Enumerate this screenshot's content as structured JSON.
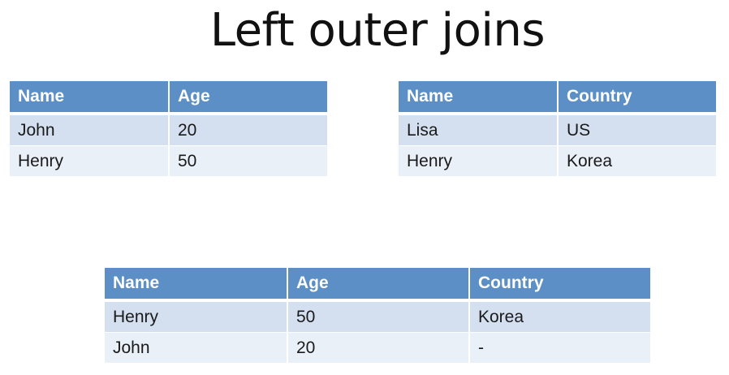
{
  "title": "Left outer joins",
  "people_table": {
    "headers": [
      "Name",
      "Age"
    ],
    "rows": [
      [
        "John",
        "20"
      ],
      [
        "Henry",
        "50"
      ]
    ]
  },
  "countries_table": {
    "headers": [
      "Name",
      "Country"
    ],
    "rows": [
      [
        "Lisa",
        "US"
      ],
      [
        "Henry",
        "Korea"
      ]
    ]
  },
  "result_table": {
    "headers": [
      "Name",
      "Age",
      "Country"
    ],
    "rows": [
      [
        "Henry",
        "50",
        "Korea"
      ],
      [
        "John",
        "20",
        "-"
      ]
    ]
  },
  "colors": {
    "header_bg": "#5b8fc6",
    "row_odd_bg": "#d4dff0",
    "row_even_bg": "#eaf0f8"
  }
}
